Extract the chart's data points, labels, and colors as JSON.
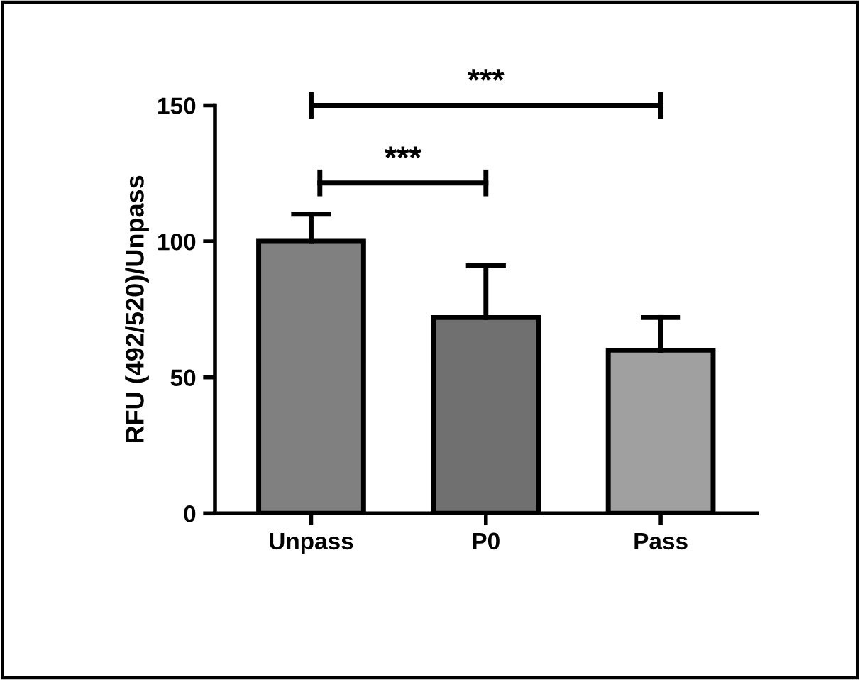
{
  "chart_data": {
    "type": "bar",
    "ylabel": "RFU (492/520)/Unpass",
    "categories": [
      "Unpass",
      "P0",
      "Pass"
    ],
    "values": [
      100,
      72,
      60
    ],
    "errors": [
      [
        100,
        110
      ],
      [
        72,
        91
      ],
      [
        60,
        72
      ]
    ],
    "colors": [
      "#808080",
      "#707070",
      "#a0a0a0"
    ],
    "ylim": [
      0,
      150
    ],
    "yticks": [
      0,
      50,
      100,
      150
    ],
    "grid": false,
    "annotations": [
      "***",
      "***"
    ]
  }
}
